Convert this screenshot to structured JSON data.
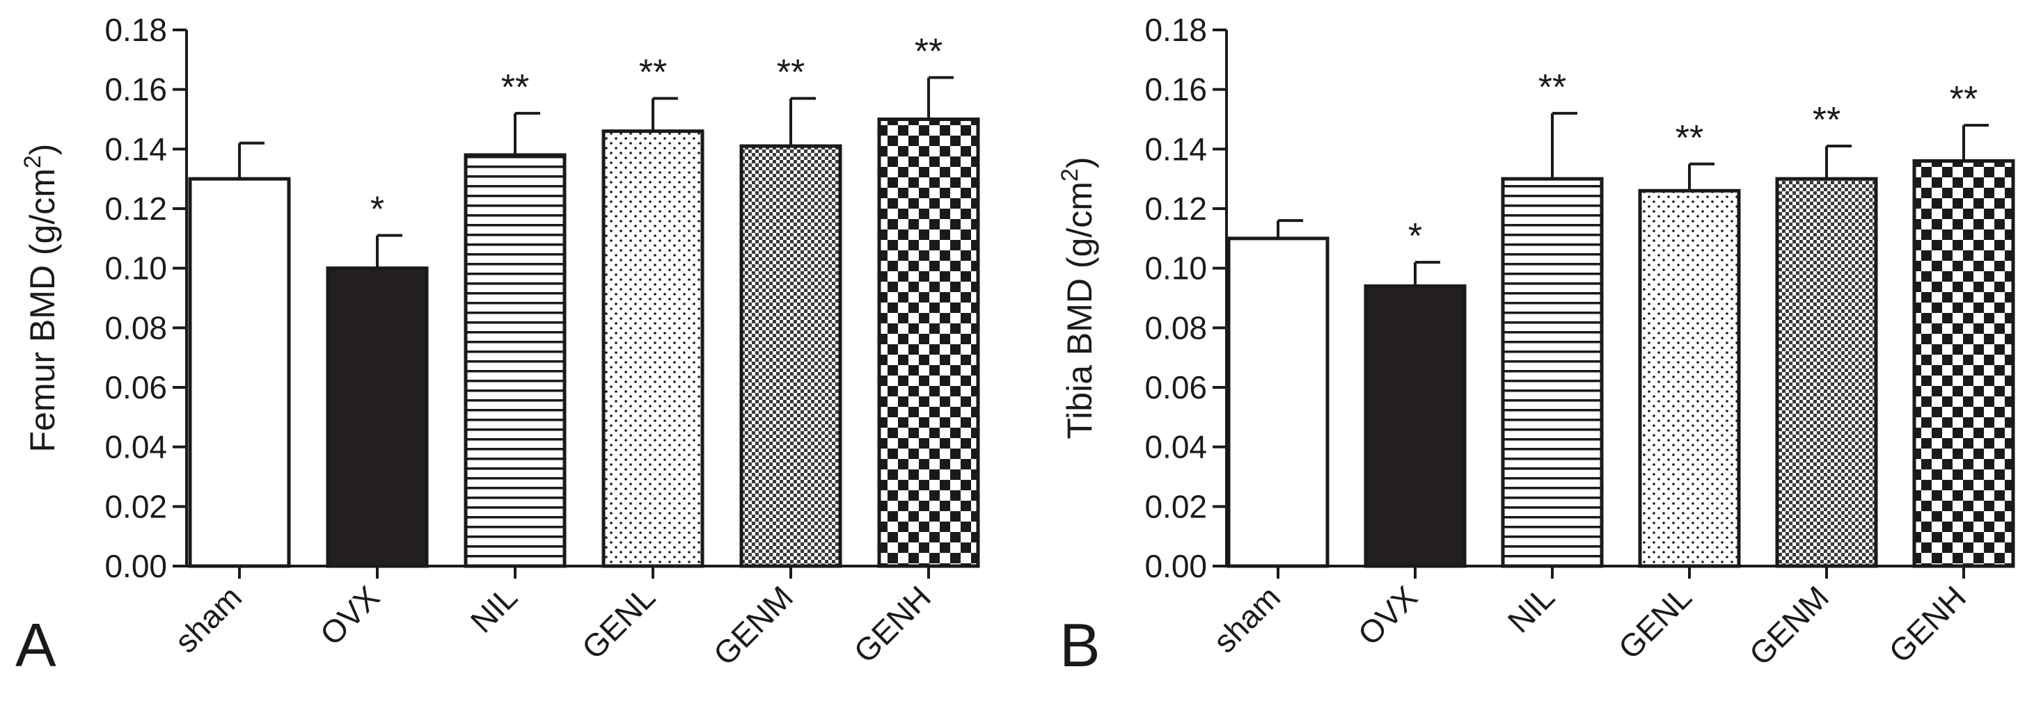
{
  "chart_data": [
    {
      "type": "bar",
      "panel": "A",
      "ylabel": "Femur BMD (g/cm",
      "ylabel_sup": "2",
      "ylabel_close": ")",
      "ylim": [
        0,
        0.18
      ],
      "yticks": [
        "0.00",
        "0.02",
        "0.04",
        "0.06",
        "0.08",
        "0.10",
        "0.12",
        "0.14",
        "0.16",
        "0.18"
      ],
      "categories": [
        "sham",
        "OVX",
        "NIL",
        "GENL",
        "GENM",
        "GENH"
      ],
      "values": [
        0.13,
        0.1,
        0.138,
        0.146,
        0.141,
        0.15
      ],
      "errors": [
        0.012,
        0.011,
        0.014,
        0.011,
        0.016,
        0.014
      ],
      "significance": [
        "",
        "*",
        "**",
        "**",
        "**",
        "**"
      ],
      "patterns": [
        "white",
        "black",
        "hlines",
        "dots",
        "fine-check",
        "checker"
      ]
    },
    {
      "type": "bar",
      "panel": "B",
      "ylabel": "Tibia BMD (g/cm",
      "ylabel_sup": "2",
      "ylabel_close": ")",
      "ylim": [
        0,
        0.18
      ],
      "yticks": [
        "0.00",
        "0.02",
        "0.04",
        "0.06",
        "0.08",
        "0.10",
        "0.12",
        "0.14",
        "0.16",
        "0.18"
      ],
      "categories": [
        "sham",
        "OVX",
        "NIL",
        "GENL",
        "GENM",
        "GENH"
      ],
      "values": [
        0.11,
        0.094,
        0.13,
        0.126,
        0.13,
        0.136
      ],
      "errors": [
        0.006,
        0.008,
        0.022,
        0.009,
        0.011,
        0.012
      ],
      "significance": [
        "",
        "*",
        "**",
        "**",
        "**",
        "**"
      ],
      "patterns": [
        "white",
        "black",
        "hlines",
        "dots",
        "fine-check",
        "checker"
      ]
    }
  ]
}
